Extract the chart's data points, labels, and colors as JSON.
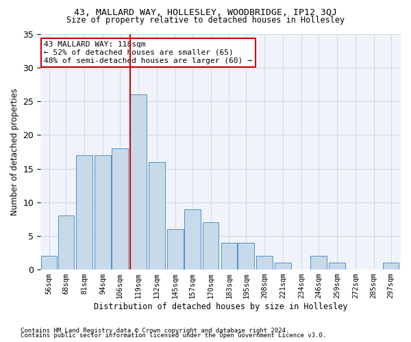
{
  "title1": "43, MALLARD WAY, HOLLESLEY, WOODBRIDGE, IP12 3QJ",
  "title2": "Size of property relative to detached houses in Hollesley",
  "xlabel": "Distribution of detached houses by size in Hollesley",
  "ylabel": "Number of detached properties",
  "footnote1": "Contains HM Land Registry data © Crown copyright and database right 2024.",
  "footnote2": "Contains public sector information licensed under the Open Government Licence v3.0.",
  "bar_color": "#c8daea",
  "bar_edge_color": "#4a90c4",
  "grid_color": "#d0d8e8",
  "annotation_box_color": "#cc0000",
  "vline_color": "#cc0000",
  "property_size": 118,
  "annotation_line1": "43 MALLARD WAY: 118sqm",
  "annotation_line2": "← 52% of detached houses are smaller (65)",
  "annotation_line3": "48% of semi-detached houses are larger (60) →",
  "bins": [
    56,
    68,
    81,
    94,
    106,
    119,
    132,
    145,
    157,
    170,
    183,
    195,
    208,
    221,
    234,
    246,
    259,
    272,
    285,
    297,
    310
  ],
  "counts": [
    2,
    8,
    17,
    17,
    18,
    26,
    16,
    6,
    9,
    7,
    4,
    4,
    2,
    1,
    0,
    2,
    1,
    0,
    0,
    1
  ],
  "ylim": [
    0,
    35
  ],
  "yticks": [
    0,
    5,
    10,
    15,
    20,
    25,
    30,
    35
  ]
}
